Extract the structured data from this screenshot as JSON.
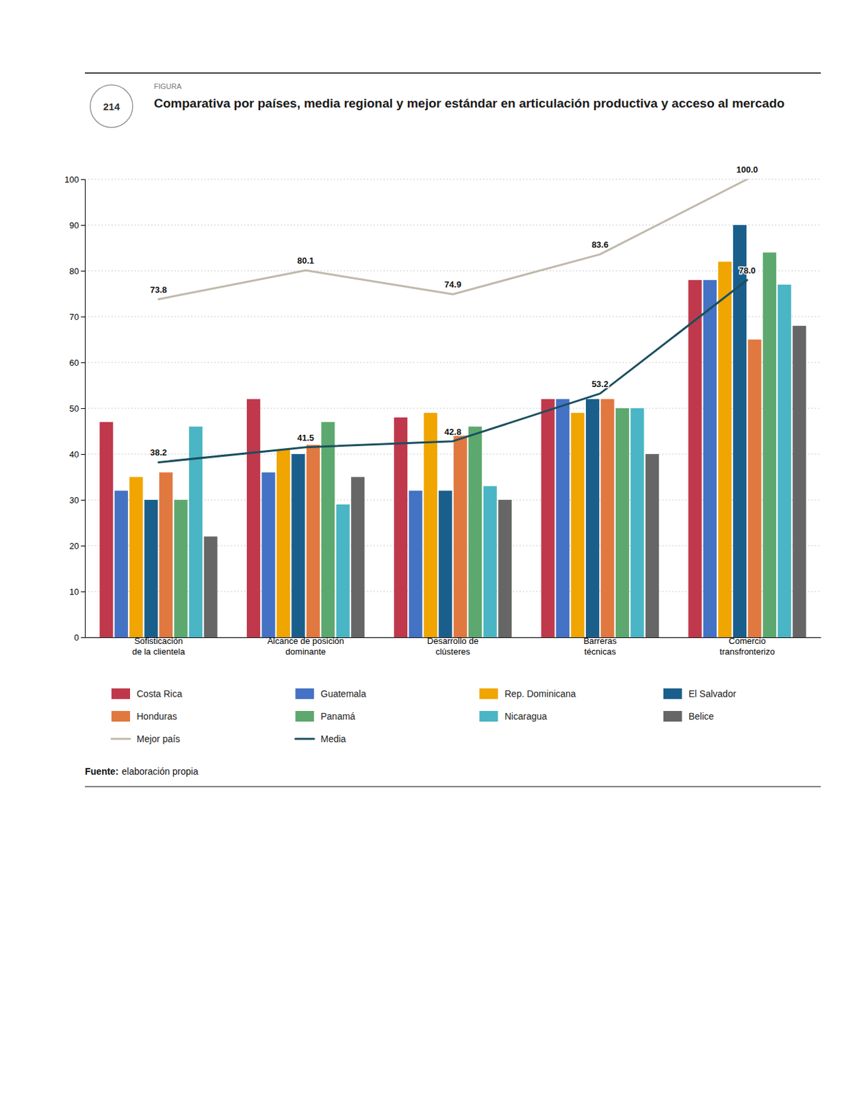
{
  "chart_data": {
    "type": "bar",
    "title": "Comparativa por países, media regional y mejor estándar en articulación productiva y acceso al mercado",
    "annotations": [
      "FIGURA",
      "214",
      "Fuente:",
      "elaboración propia"
    ],
    "categories": [
      "Sofisticación\nde la clientela",
      "Alcance de posición\ndominante",
      "Desarrollo de\nclústeres",
      "Barreras\ntécnicas",
      "Comercio\ntransfronterizo"
    ],
    "series": [
      {
        "name": "Costa Rica",
        "type": "bar",
        "color": "#c0384b",
        "values": [
          47,
          52,
          48,
          52,
          78
        ]
      },
      {
        "name": "Guatemala",
        "type": "bar",
        "color": "#4472c4",
        "values": [
          32,
          36,
          32,
          52,
          78
        ]
      },
      {
        "name": "Rep. Dominicana",
        "type": "bar",
        "color": "#f0a500",
        "values": [
          35,
          41,
          49,
          49,
          82
        ]
      },
      {
        "name": "El Salvador",
        "type": "bar",
        "color": "#1a5f8c",
        "values": [
          30,
          40,
          32,
          52,
          90
        ]
      },
      {
        "name": "Honduras",
        "type": "bar",
        "color": "#e07840",
        "values": [
          36,
          42,
          44,
          52,
          65
        ]
      },
      {
        "name": "Panamá",
        "type": "bar",
        "color": "#5da86e",
        "values": [
          30,
          47,
          46,
          50,
          84
        ]
      },
      {
        "name": "Nicaragua",
        "type": "bar",
        "color": "#4ab5c4",
        "values": [
          46,
          29,
          33,
          50,
          77
        ]
      },
      {
        "name": "Belice",
        "type": "bar",
        "color": "#666666",
        "values": [
          22,
          35,
          30,
          40,
          68
        ]
      },
      {
        "name": "Mejor país",
        "type": "line",
        "color": "#c0b9aa",
        "data_labels": true,
        "values": [
          73.8,
          80.1,
          74.9,
          83.6,
          100.0
        ],
        "value_labels": [
          "73.8",
          "80.1",
          "74.9",
          "83.6",
          "100.0"
        ]
      },
      {
        "name": "Media",
        "type": "line",
        "color": "#1a4f5e",
        "data_labels": true,
        "values": [
          38.2,
          41.5,
          42.8,
          53.2,
          78.0
        ],
        "value_labels": [
          "38.2",
          "41.5",
          "42.8",
          "53.2",
          "78.0"
        ]
      }
    ],
    "ylim": [
      0,
      100
    ],
    "yticks": [
      0,
      10,
      20,
      30,
      40,
      50,
      60,
      70,
      80,
      90,
      100
    ],
    "grid": true,
    "legend": "bottom"
  }
}
